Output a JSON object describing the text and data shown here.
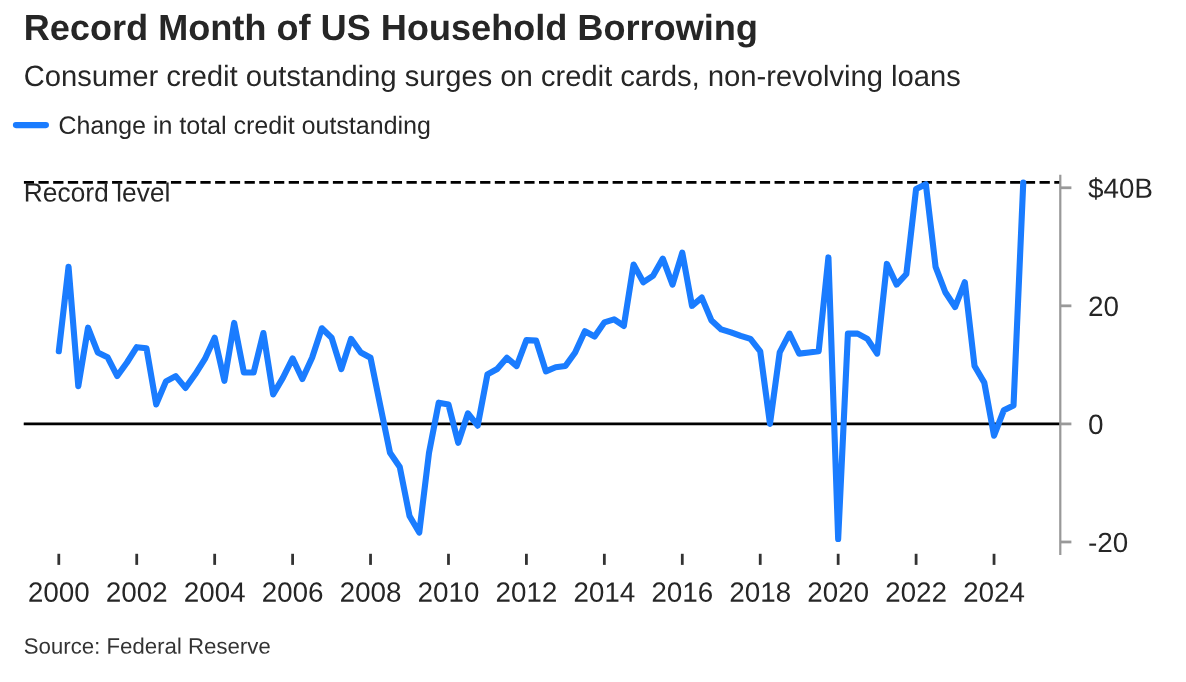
{
  "chart_data": {
    "type": "line",
    "title": "Record Month of US Household Borrowing",
    "subtitle": "Consumer credit outstanding surges on credit cards, non-revolving loans",
    "x": [
      2000.0,
      2000.25,
      2000.5,
      2000.75,
      2001.0,
      2001.25,
      2001.5,
      2001.75,
      2002.0,
      2002.25,
      2002.5,
      2002.75,
      2003.0,
      2003.25,
      2003.5,
      2003.75,
      2004.0,
      2004.25,
      2004.5,
      2004.75,
      2005.0,
      2005.25,
      2005.5,
      2005.75,
      2006.0,
      2006.25,
      2006.5,
      2006.75,
      2007.0,
      2007.25,
      2007.5,
      2007.75,
      2008.0,
      2008.25,
      2008.5,
      2008.75,
      2009.0,
      2009.25,
      2009.5,
      2009.75,
      2010.0,
      2010.25,
      2010.5,
      2010.75,
      2011.0,
      2011.25,
      2011.5,
      2011.75,
      2012.0,
      2012.25,
      2012.5,
      2012.75,
      2013.0,
      2013.25,
      2013.5,
      2013.75,
      2014.0,
      2014.25,
      2014.5,
      2014.75,
      2015.0,
      2015.25,
      2015.5,
      2015.75,
      2016.0,
      2016.25,
      2016.5,
      2016.75,
      2017.0,
      2017.25,
      2017.5,
      2017.75,
      2018.0,
      2018.25,
      2018.5,
      2018.75,
      2019.0,
      2019.25,
      2019.5,
      2019.75,
      2020.0,
      2020.25,
      2020.5,
      2020.75,
      2021.0,
      2021.25,
      2021.5,
      2021.75,
      2022.0,
      2022.25,
      2022.5,
      2022.75,
      2023.0,
      2023.25,
      2023.5,
      2023.75,
      2024.0,
      2024.25,
      2024.5,
      2024.75
    ],
    "series": [
      {
        "name": "Change in total credit outstanding",
        "color": "#1a7cff",
        "values": [
          12.3,
          26.6,
          6.4,
          16.3,
          12.1,
          11.3,
          8.1,
          10.4,
          13.0,
          12.8,
          3.3,
          7.2,
          8.1,
          6.1,
          8.4,
          11.0,
          14.6,
          7.3,
          17.1,
          8.7,
          8.7,
          15.4,
          5.0,
          7.8,
          11.1,
          7.6,
          11.2,
          16.2,
          14.6,
          9.3,
          14.4,
          12.1,
          11.2,
          3.1,
          -4.9,
          -7.3,
          -15.6,
          -18.4,
          -4.9,
          3.6,
          3.3,
          -3.2,
          1.8,
          -0.3,
          8.4,
          9.3,
          11.2,
          9.8,
          14.2,
          14.1,
          8.9,
          9.6,
          9.8,
          12.1,
          15.7,
          14.8,
          17.2,
          17.7,
          16.6,
          27.0,
          24.0,
          25.1,
          28.0,
          23.6,
          29.0,
          20.0,
          21.4,
          17.5,
          16.0,
          15.5,
          14.9,
          14.4,
          12.3,
          0,
          12.1,
          15.3,
          11.9,
          12.1,
          12.3,
          28.2,
          -19.5,
          15.3,
          15.3,
          14.4,
          11.9,
          27.1,
          23.6,
          25.4,
          39.8,
          40.6,
          26.6,
          22.3,
          19.8,
          24.0,
          9.8,
          7.0,
          -2.0,
          2.3,
          3.1,
          40.9
        ]
      }
    ],
    "xlim": [
      1999.1,
      2025.7
    ],
    "xticks": [
      2000,
      2002,
      2004,
      2006,
      2008,
      2010,
      2012,
      2014,
      2016,
      2018,
      2020,
      2022,
      2024
    ],
    "ylim": [
      -22,
      42
    ],
    "yticks": [
      {
        "value": 40,
        "label": "$40B"
      },
      20,
      0,
      {
        "value": -20,
        "label": "-20"
      }
    ],
    "ref_lines": [
      {
        "axis": "y",
        "value": 40.9,
        "label": "Record level",
        "color": "#000000",
        "line_style": "dashed"
      },
      {
        "axis": "y",
        "value": 0,
        "color": "#000000",
        "line_style": "solid"
      }
    ],
    "annotations": [
      "Source: Federal Reserve"
    ],
    "grid": false,
    "legend": "top left",
    "marker": "none",
    "line_style": "solid"
  }
}
